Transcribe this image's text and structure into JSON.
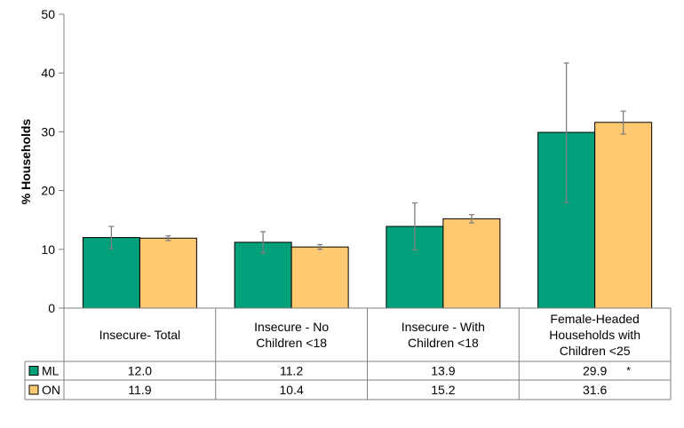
{
  "chart_data": {
    "type": "bar",
    "ylabel": "% Households",
    "ylim": [
      0,
      50
    ],
    "yticks": [
      0,
      10,
      20,
      30,
      40,
      50
    ],
    "grid": false,
    "legend": "data-table",
    "categories": [
      [
        "Insecure- Total"
      ],
      [
        "Insecure - No",
        "Children <18"
      ],
      [
        "Insecure - With",
        "Children <18"
      ],
      [
        "Female-Headed",
        "Households with",
        "Children <25"
      ]
    ],
    "series": [
      {
        "name": "ML",
        "color": "#00a07a",
        "values": [
          12.0,
          11.2,
          13.9,
          29.9
        ],
        "labels": [
          "12.0",
          "11.2",
          "13.9",
          "29.9"
        ],
        "error_low": [
          10.1,
          9.4,
          9.9,
          18.0
        ],
        "error_high": [
          13.9,
          13.0,
          17.9,
          41.7
        ]
      },
      {
        "name": "ON",
        "color": "#ffc972",
        "values": [
          11.9,
          10.4,
          15.2,
          31.6
        ],
        "labels": [
          "11.9",
          "10.4",
          "15.2",
          "31.6"
        ],
        "error_low": [
          11.5,
          10.0,
          14.5,
          29.6
        ],
        "error_high": [
          12.3,
          10.8,
          15.9,
          33.5
        ]
      }
    ],
    "annotations": [
      {
        "category": 3,
        "series": 0,
        "text": "*"
      }
    ]
  }
}
